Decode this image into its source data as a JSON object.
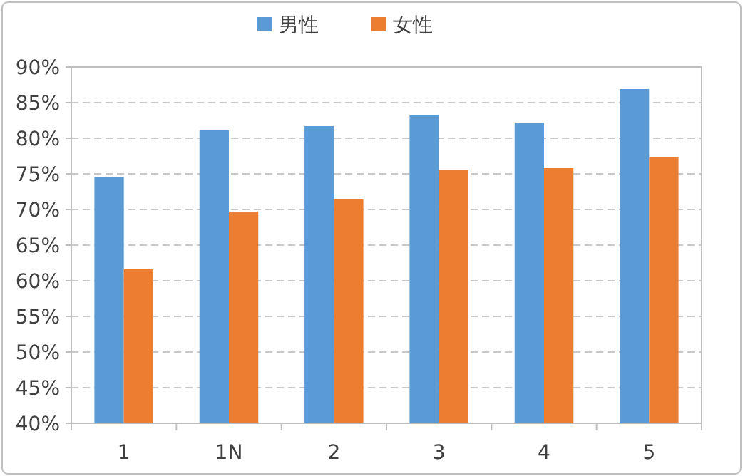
{
  "chart_data": {
    "type": "bar",
    "categories": [
      "1",
      "1N",
      "2",
      "3",
      "4",
      "5"
    ],
    "series": [
      {
        "name": "男性",
        "color": "#5b9bd5",
        "values": [
          74.6,
          81.1,
          81.7,
          83.2,
          82.2,
          86.9
        ]
      },
      {
        "name": "女性",
        "color": "#ed7d31",
        "values": [
          61.6,
          69.7,
          71.5,
          75.6,
          75.8,
          77.3
        ]
      }
    ],
    "ylim": [
      40,
      90
    ],
    "yticks": [
      {
        "value": 40,
        "label": "40%"
      },
      {
        "value": 45,
        "label": "45%"
      },
      {
        "value": 50,
        "label": "50%"
      },
      {
        "value": 55,
        "label": "55%"
      },
      {
        "value": 60,
        "label": "60%"
      },
      {
        "value": 65,
        "label": "65%"
      },
      {
        "value": 70,
        "label": "70%"
      },
      {
        "value": 75,
        "label": "75%"
      },
      {
        "value": 80,
        "label": "80%"
      },
      {
        "value": 85,
        "label": "85%"
      },
      {
        "value": 90,
        "label": "90%"
      }
    ],
    "grid": "y",
    "legend": "top"
  }
}
